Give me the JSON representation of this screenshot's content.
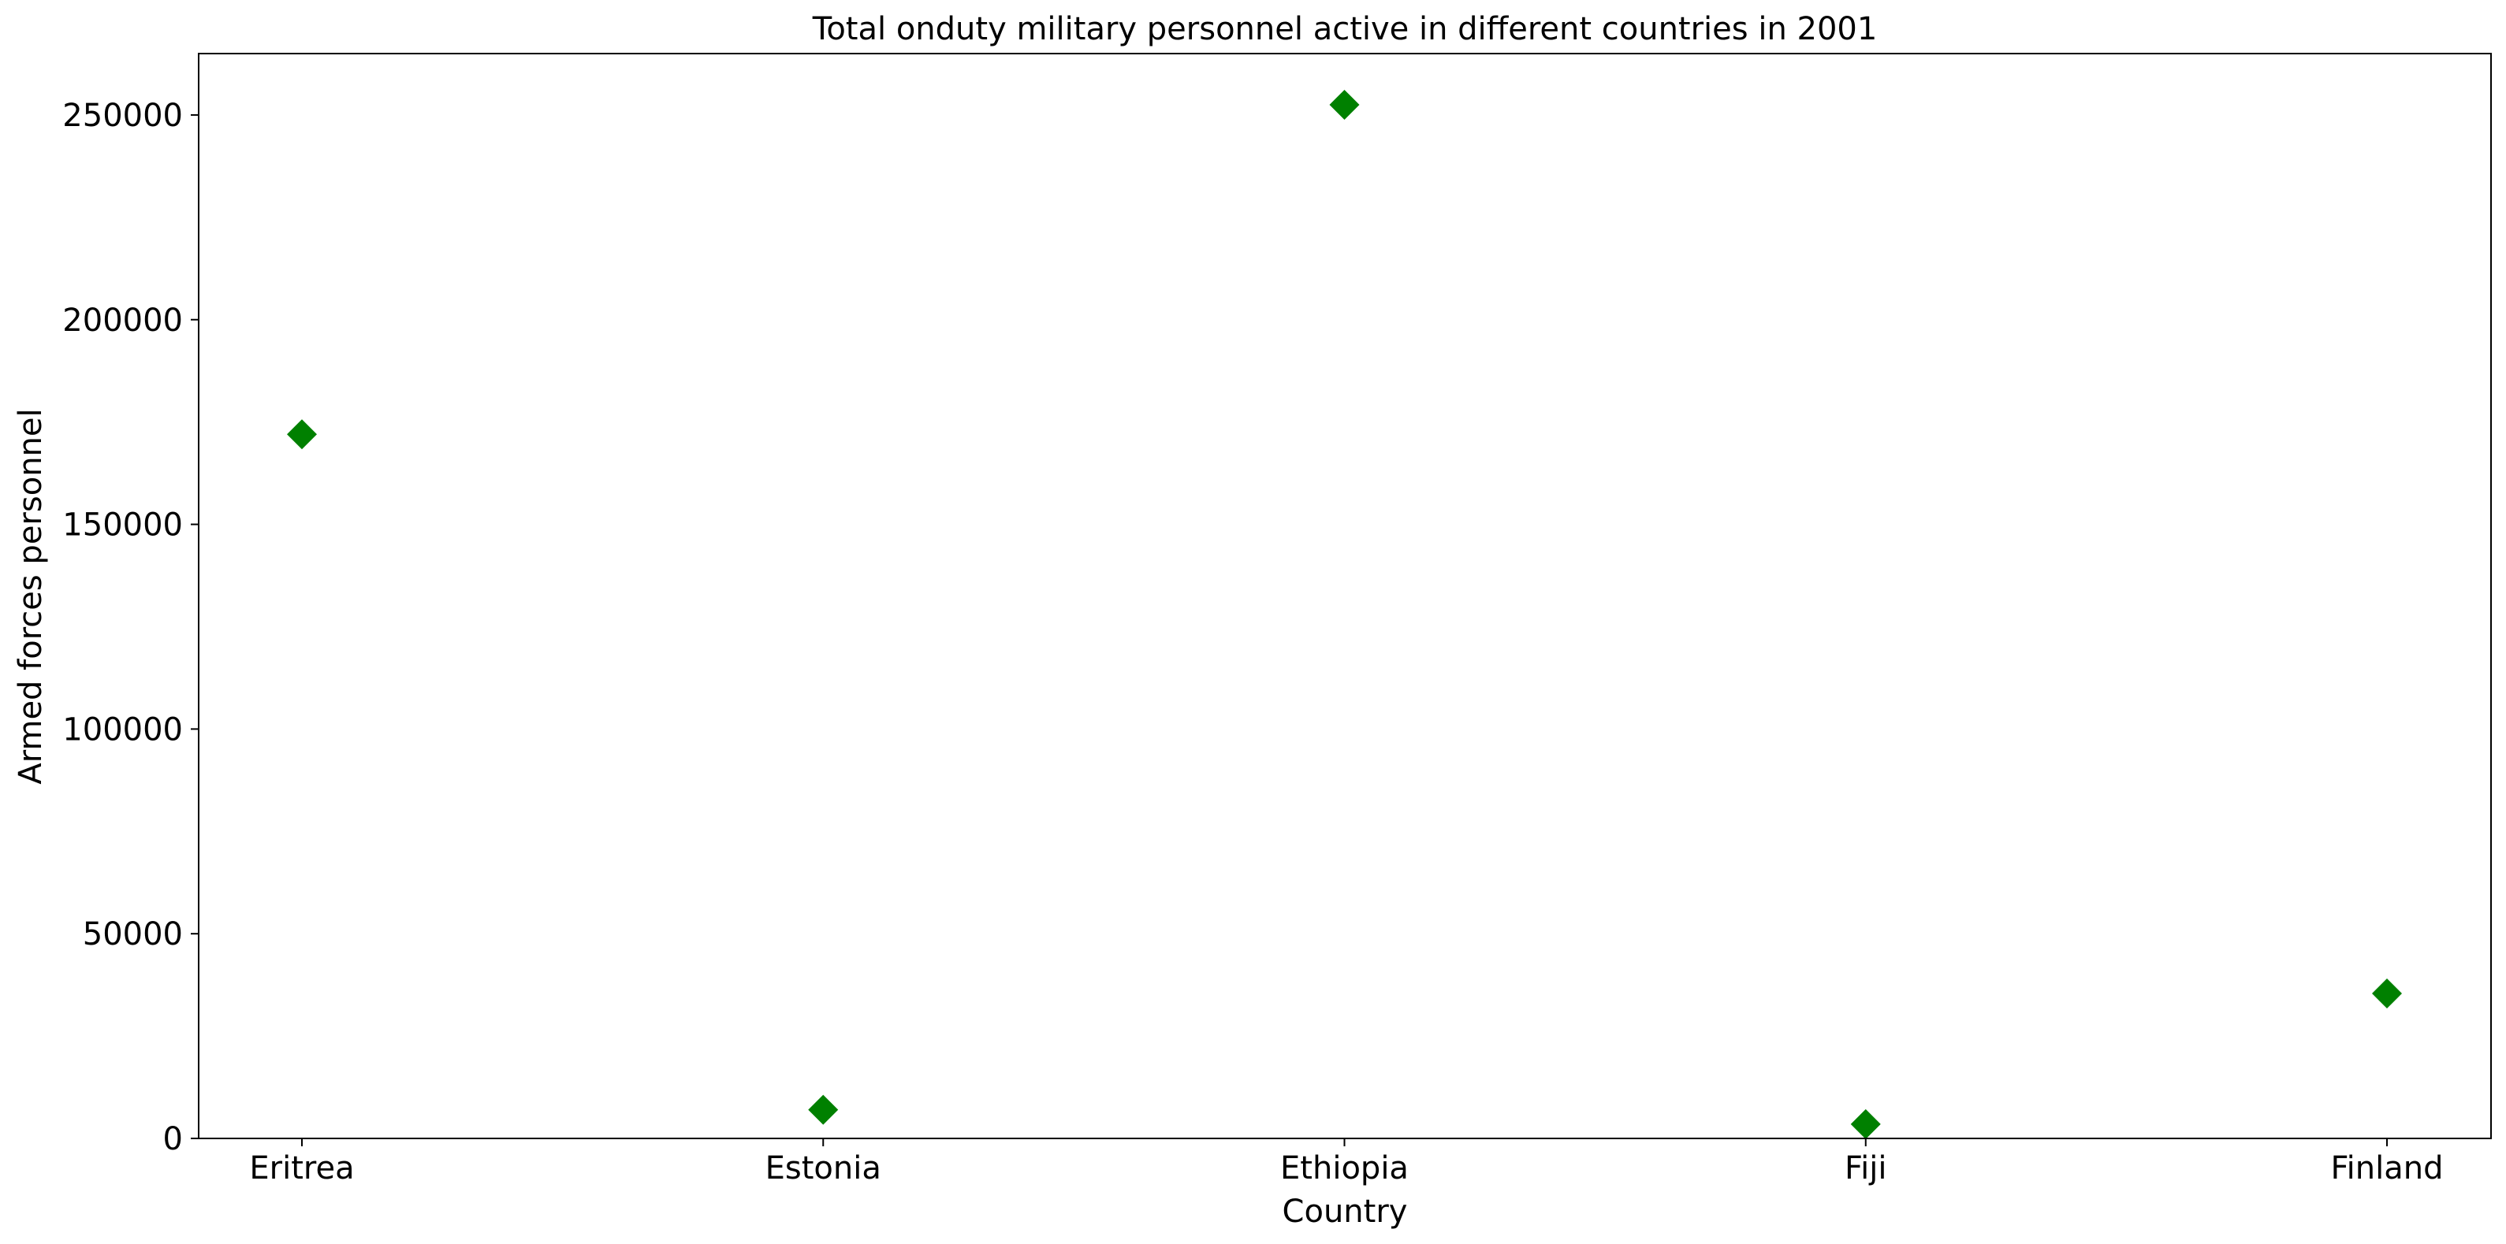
{
  "chart_data": {
    "type": "scatter",
    "title": "Total onduty military personnel active in different countries in 2001",
    "xlabel": "Country",
    "ylabel": "Armed forces personnel",
    "categories": [
      "Eritrea",
      "Estonia",
      "Ethiopia",
      "Fiji",
      "Finland"
    ],
    "values": [
      172000,
      7000,
      252500,
      3500,
      35400
    ],
    "ylim": [
      0,
      265000
    ],
    "yticks": [
      0,
      50000,
      100000,
      150000,
      200000,
      250000
    ],
    "ytick_labels": [
      "0",
      "50000",
      "100000",
      "150000",
      "200000",
      "250000"
    ],
    "marker": "diamond",
    "marker_color": "#008000",
    "grid": false
  }
}
